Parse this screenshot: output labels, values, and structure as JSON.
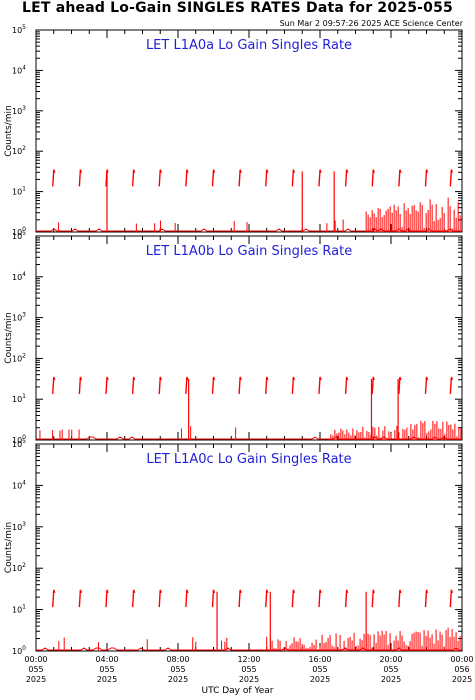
{
  "page": {
    "title": "LET ahead Lo-Gain SINGLES RATES Data for 2025-055",
    "timestamp": "Sun Mar  2 09:57:26 2025 ACE Science Center",
    "xlabel": "UTC Day of Year"
  },
  "chart_data": {
    "type": "line",
    "title": "LET ahead Lo-Gain SINGLES RATES Data for 2025-055",
    "xlabel": "UTC Day of Year",
    "ylabel": "Counts/min",
    "yscale": "log",
    "ylim": [
      1,
      100000
    ],
    "xlim_hours": [
      0,
      24
    ],
    "ytick_labels": [
      {
        "base": "10",
        "exp": "0"
      },
      {
        "base": "10",
        "exp": "1"
      },
      {
        "base": "10",
        "exp": "2"
      },
      {
        "base": "10",
        "exp": "3"
      },
      {
        "base": "10",
        "exp": "4"
      },
      {
        "base": "10",
        "exp": "5"
      }
    ],
    "xtick_labels": [
      {
        "hour": 0,
        "time": "00:00",
        "doy": "055",
        "year": "2025"
      },
      {
        "hour": 4,
        "time": "04:00",
        "doy": "055",
        "year": "2025"
      },
      {
        "hour": 8,
        "time": "08:00",
        "doy": "055",
        "year": "2025"
      },
      {
        "hour": 12,
        "time": "12:00",
        "doy": "055",
        "year": "2025"
      },
      {
        "hour": 16,
        "time": "16:00",
        "doy": "055",
        "year": "2025"
      },
      {
        "hour": 20,
        "time": "20:00",
        "doy": "055",
        "year": "2025"
      },
      {
        "hour": 24,
        "time": "00:00",
        "doy": "056",
        "year": "2025"
      }
    ],
    "line_color": "#ff0000",
    "grid": false,
    "panels": [
      {
        "name": "LET L1A0a Lo Gain Singles Rate",
        "periodic_spike_hours": [
          1.0,
          2.5,
          4.0,
          5.5,
          7.0,
          8.5,
          10.0,
          11.5,
          13.0,
          14.5,
          16.0,
          17.5,
          19.0,
          20.5,
          22.0,
          23.4
        ],
        "spike_level": 35,
        "baseline": 1.0,
        "tall_drops_hours": [
          4.0,
          15.0,
          16.8
        ],
        "noisy_hours": [
          18.6,
          24
        ],
        "noisy_max": 8
      },
      {
        "name": "LET L1A0b Lo Gain Singles Rate",
        "periodic_spike_hours": [
          1.0,
          2.5,
          4.0,
          5.5,
          7.0,
          8.5,
          10.0,
          11.5,
          13.0,
          14.5,
          16.0,
          17.5,
          19.0,
          20.5,
          22.0,
          23.4
        ],
        "spike_level": 35,
        "baseline": 1.0,
        "tall_drops_hours": [
          8.6,
          18.9,
          20.4
        ],
        "noisy_hours": [
          16.5,
          24
        ],
        "noisy_max": 3.5
      },
      {
        "name": "LET L1A0c Lo Gain Singles Rate",
        "periodic_spike_hours": [
          1.0,
          2.5,
          4.0,
          5.5,
          7.0,
          8.5,
          10.0,
          11.5,
          13.0,
          14.5,
          16.0,
          17.5,
          19.0,
          20.5,
          22.0,
          23.4
        ],
        "spike_level": 30,
        "baseline": 1.0,
        "tall_drops_hours": [
          10.2,
          13.2,
          18.6
        ],
        "noisy_hours": [
          13.3,
          24
        ],
        "noisy_max": 4
      }
    ]
  }
}
